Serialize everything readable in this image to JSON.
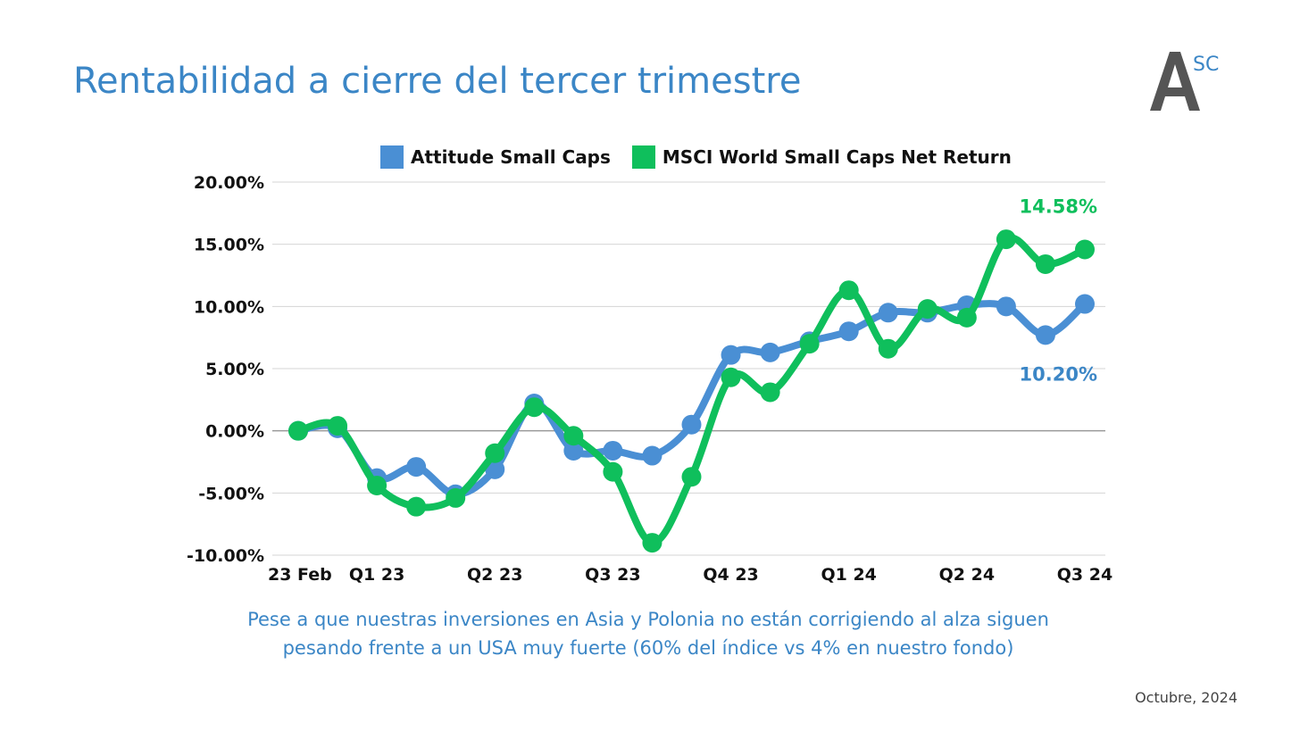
{
  "page": {
    "title": "Rentabilidad a cierre del tercer trimestre",
    "logo": {
      "letter": "A",
      "superscript": "SC"
    },
    "caption_lines": [
      "Pese a que nuestras inversiones en Asia y Polonia no están corrigiendo al alza siguen",
      "pesando frente a un USA muy fuerte (60% del índice vs 4% en nuestro fondo)"
    ],
    "date": "Octubre, 2024"
  },
  "colors": {
    "accent": "#3b86c6",
    "series1": "#4a8fd4",
    "series2": "#0fbf5c"
  },
  "chart_data": {
    "type": "line",
    "ylim": [
      -10,
      20
    ],
    "yticks": [
      20,
      15,
      10,
      5,
      0,
      -5,
      -10
    ],
    "ytick_labels": [
      "20.00%",
      "15.00%",
      "10.00%",
      "5.00%",
      "0.00%",
      "-5.00%",
      "-10.00%"
    ],
    "categories": [
      "23 Feb",
      "",
      "Q1 23",
      "",
      "",
      "Q2 23",
      "",
      "",
      "Q3 23",
      "",
      "",
      "Q4 23",
      "",
      "",
      "Q1 24",
      "",
      "",
      "Q2 24",
      "",
      "",
      "Q3 24"
    ],
    "grid": true,
    "legend": "top",
    "series": [
      {
        "name": "Attitude Small Caps",
        "color": "#4a8fd4",
        "values": [
          0.0,
          0.2,
          -3.8,
          -2.9,
          -5.1,
          -3.1,
          2.2,
          -1.6,
          -1.6,
          -2.0,
          0.5,
          6.1,
          6.3,
          7.2,
          8.0,
          9.5,
          9.5,
          10.1,
          10.0,
          7.7,
          10.2
        ],
        "end_label": "10.20%"
      },
      {
        "name": "MSCI World Small Caps Net Return",
        "color": "#0fbf5c",
        "values": [
          0.0,
          0.4,
          -4.4,
          -6.1,
          -5.4,
          -1.8,
          1.9,
          -0.4,
          -3.3,
          -9.0,
          -3.7,
          4.3,
          3.1,
          7.0,
          11.3,
          6.6,
          9.8,
          9.1,
          15.4,
          13.4,
          14.58
        ],
        "end_label": "14.58%"
      }
    ]
  }
}
